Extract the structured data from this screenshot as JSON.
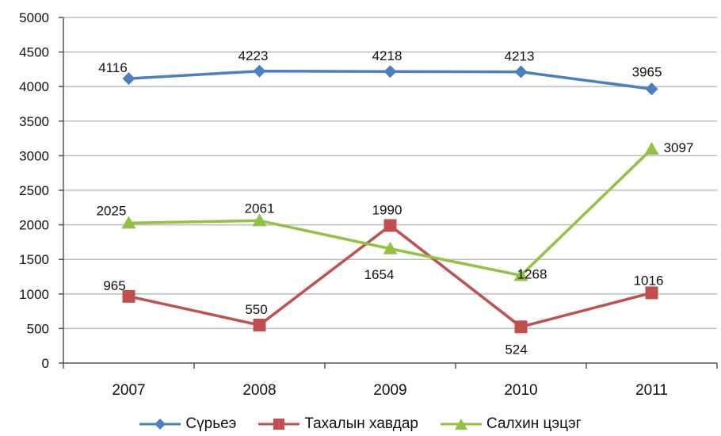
{
  "chart_data": {
    "type": "line",
    "categories": [
      "2007",
      "2008",
      "2009",
      "2010",
      "2011"
    ],
    "ylim": [
      0,
      5000
    ],
    "yticks": [
      "0",
      "500",
      "1000",
      "1500",
      "2000",
      "2500",
      "3000",
      "3500",
      "4000",
      "4500",
      "5000"
    ],
    "grid": true,
    "legend": "bottom",
    "series": [
      {
        "name": "Сүрьеэ",
        "color": "#4a7fc1",
        "marker": "diamond",
        "values": [
          4116,
          4223,
          4218,
          4213,
          3965
        ],
        "labels": [
          "4116",
          "4223",
          "4218",
          "4213",
          "3965"
        ]
      },
      {
        "name": "Тахалын хавдар",
        "color": "#c0504d",
        "marker": "square",
        "values": [
          965,
          550,
          1990,
          524,
          1016
        ],
        "labels": [
          "965",
          "550",
          "1990",
          "524",
          "1016"
        ]
      },
      {
        "name": "Салхин цэцэг",
        "color": "#8fc341",
        "marker": "triangle",
        "values": [
          2025,
          2061,
          1654,
          1268,
          3097
        ],
        "labels": [
          "2025",
          "2061",
          "1654",
          "1268",
          "3097"
        ]
      }
    ]
  }
}
